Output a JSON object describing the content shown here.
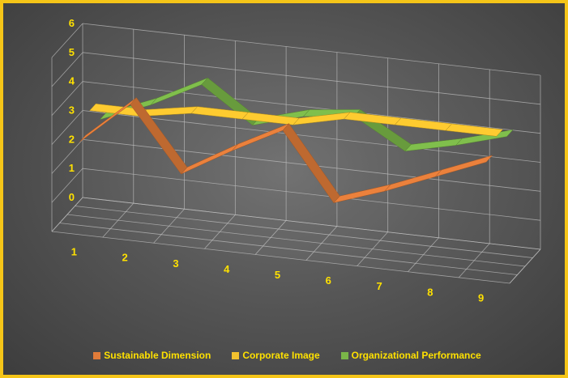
{
  "chart_data": {
    "type": "line",
    "subtype": "3d-line",
    "title": "",
    "xlabel": "",
    "ylabel": "",
    "categories": [
      "1",
      "2",
      "3",
      "4",
      "5",
      "6",
      "7",
      "8",
      "9"
    ],
    "ylim": [
      0,
      6
    ],
    "yticks": [
      "0",
      "1",
      "2",
      "3",
      "4",
      "5",
      "6"
    ],
    "grid": true,
    "legend_position": "bottom",
    "series": [
      {
        "name": "Sustainable Dimension",
        "color": "#e07b39",
        "values": [
          3.1,
          4.6,
          2.4,
          3.4,
          4.3,
          2.0,
          2.6,
          3.3,
          4.0
        ]
      },
      {
        "name": "Corporate Image",
        "color": "#f2c12e",
        "values": [
          3.8,
          3.8,
          4.1,
          4.1,
          4.1,
          4.5,
          4.5,
          4.5,
          4.5
        ]
      },
      {
        "name": "Organizational Performance",
        "color": "#7ab648",
        "values": [
          3.1,
          3.8,
          4.7,
          3.5,
          4.0,
          4.2,
          3.2,
          3.6,
          4.1
        ]
      }
    ],
    "text_color": "#ffe100",
    "background": "#5a5a5a",
    "border_color": "#f5c518"
  }
}
